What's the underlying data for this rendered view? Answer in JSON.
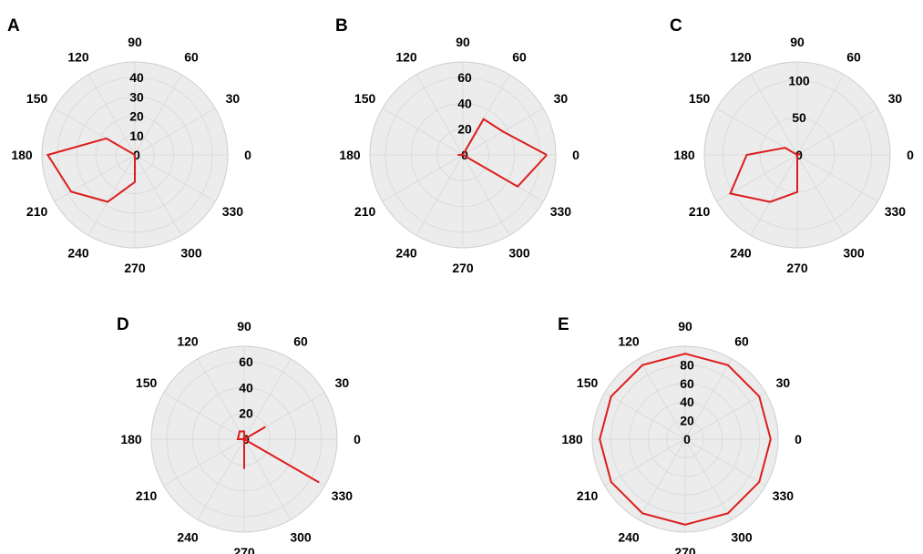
{
  "chart_data": [
    {
      "panel": "A",
      "type": "polar-line",
      "angle_ticks": [
        "0",
        "30",
        "60",
        "90",
        "120",
        "150",
        "180",
        "210",
        "240",
        "270",
        "300",
        "330"
      ],
      "radial_ticks": [
        "0",
        "10",
        "20",
        "30",
        "40"
      ],
      "rmax": 48,
      "series": [
        {
          "color": "#dd1c1c",
          "theta": [
            0,
            30,
            60,
            90,
            120,
            150,
            180,
            210,
            240,
            270,
            300,
            330
          ],
          "r": [
            0,
            0,
            0,
            0,
            0,
            17,
            45,
            38,
            28,
            14,
            0,
            0
          ]
        }
      ]
    },
    {
      "panel": "B",
      "type": "polar-line",
      "angle_ticks": [
        "0",
        "30",
        "60",
        "90",
        "120",
        "150",
        "180",
        "210",
        "240",
        "270",
        "300",
        "330"
      ],
      "radial_ticks": [
        "0",
        "20",
        "40",
        "60"
      ],
      "rmax": 72,
      "series": [
        {
          "color": "#dd1c1c",
          "theta": [
            0,
            30,
            60,
            90,
            120,
            150,
            180,
            210,
            240,
            270,
            300,
            330
          ],
          "r": [
            65,
            36,
            32,
            0,
            0,
            0,
            4,
            0,
            0,
            0,
            0,
            49
          ]
        }
      ]
    },
    {
      "panel": "C",
      "type": "polar-line",
      "angle_ticks": [
        "0",
        "30",
        "60",
        "90",
        "120",
        "150",
        "180",
        "210",
        "240",
        "270",
        "300",
        "330"
      ],
      "radial_ticks": [
        "0",
        "50",
        "100"
      ],
      "rmax": 125,
      "series": [
        {
          "color": "#dd1c1c",
          "theta": [
            0,
            30,
            60,
            90,
            120,
            150,
            180,
            210,
            240,
            270,
            300,
            330
          ],
          "r": [
            2,
            4,
            0,
            0,
            0,
            19,
            68,
            104,
            73,
            50,
            0,
            0
          ]
        }
      ]
    },
    {
      "panel": "D",
      "type": "polar-line",
      "angle_ticks": [
        "0",
        "30",
        "60",
        "90",
        "120",
        "150",
        "180",
        "210",
        "240",
        "270",
        "300",
        "330"
      ],
      "radial_ticks": [
        "0",
        "20",
        "40",
        "60"
      ],
      "rmax": 72,
      "series": [
        {
          "color": "#dd1c1c",
          "theta": [
            0,
            30,
            60,
            90,
            120,
            150,
            180,
            210,
            240,
            270,
            300,
            330
          ],
          "r": [
            0,
            19,
            0,
            6,
            7,
            5,
            5,
            0,
            0,
            23,
            0,
            67
          ]
        }
      ]
    },
    {
      "panel": "E",
      "type": "polar-line",
      "angle_ticks": [
        "0",
        "30",
        "60",
        "90",
        "120",
        "150",
        "180",
        "210",
        "240",
        "270",
        "300",
        "330"
      ],
      "radial_ticks": [
        "0",
        "20",
        "40",
        "60",
        "80"
      ],
      "rmax": 100,
      "series": [
        {
          "color": "#dd1c1c",
          "theta": [
            0,
            30,
            60,
            90,
            120,
            150,
            180,
            210,
            240,
            270,
            300,
            330
          ],
          "r": [
            92,
            92,
            92,
            92,
            92,
            92,
            92,
            92,
            92,
            92,
            92,
            92
          ]
        }
      ]
    }
  ]
}
